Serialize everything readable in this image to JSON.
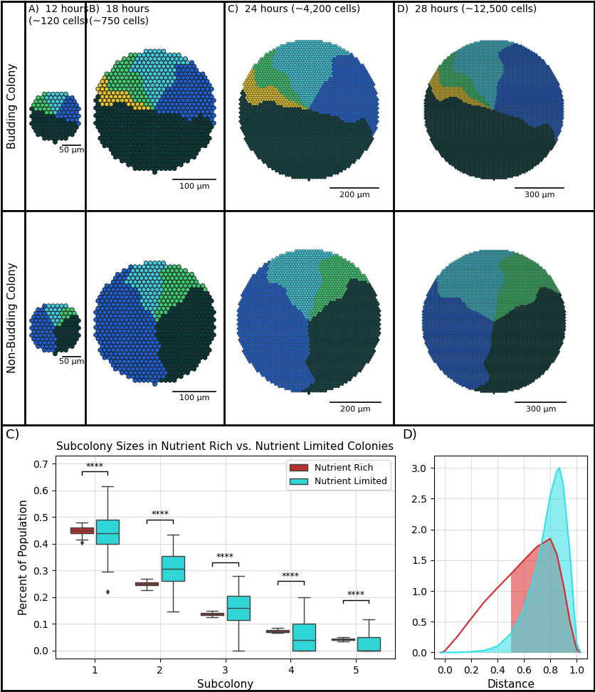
{
  "figure": {
    "rows": [
      "Budding Colony",
      "Non-Budding Colony"
    ],
    "columns": [
      {
        "title": [
          "A)  12 hours",
          "(~120 cells)"
        ],
        "scale_bar": "50 μm"
      },
      {
        "title": [
          "B)  18 hours",
          "(~750 cells)"
        ],
        "scale_bar": "100 μm"
      },
      {
        "title": [
          "C)  24 hours (~4,200 cells)"
        ],
        "scale_bar": "200 μm"
      },
      {
        "title": [
          "D)  28 hours (~12,500 cells)"
        ],
        "scale_bar": "300 μm"
      }
    ]
  },
  "chart_data": [
    {
      "type": "box",
      "panel": "C)",
      "title": "Subcolony Sizes in Nutrient Rich vs. Nutrient Limited Colonies",
      "x_label": "Subcolony",
      "y_label": "Percent of Population",
      "categories": [
        "1",
        "2",
        "3",
        "4",
        "5"
      ],
      "ylim": [
        -0.03,
        0.73
      ],
      "yticks": [
        {
          "value": 0.0,
          "label": "0.0"
        },
        {
          "value": 0.1,
          "label": "0.1"
        },
        {
          "value": 0.2,
          "label": "0.2"
        },
        {
          "value": 0.3,
          "label": "0.3"
        },
        {
          "value": 0.4,
          "label": "0.4"
        },
        {
          "value": 0.5,
          "label": "0.5"
        },
        {
          "value": 0.6,
          "label": "0.6"
        },
        {
          "value": 0.7,
          "label": "0.7"
        }
      ],
      "grid": true,
      "legend": "upper right",
      "series": [
        {
          "name": "Nutrient Rich",
          "color": "#b5332e",
          "stats": [
            {
              "whislo": 0.415,
              "q1": 0.44,
              "med": 0.45,
              "q3": 0.46,
              "whishi": 0.48,
              "fliers": [
                0.405
              ]
            },
            {
              "whislo": 0.225,
              "q1": 0.245,
              "med": 0.25,
              "q3": 0.256,
              "whishi": 0.27,
              "fliers": []
            },
            {
              "whislo": 0.125,
              "q1": 0.132,
              "med": 0.137,
              "q3": 0.141,
              "whishi": 0.15,
              "fliers": []
            },
            {
              "whislo": 0.065,
              "q1": 0.07,
              "med": 0.075,
              "q3": 0.078,
              "whishi": 0.085,
              "fliers": []
            },
            {
              "whislo": 0.035,
              "q1": 0.04,
              "med": 0.042,
              "q3": 0.045,
              "whishi": 0.05,
              "fliers": []
            }
          ]
        },
        {
          "name": "Nutrient Limited",
          "color": "#30d5d8",
          "stats": [
            {
              "whislo": 0.295,
              "q1": 0.4,
              "med": 0.44,
              "q3": 0.49,
              "whishi": 0.615,
              "fliers": [
                0.22
              ]
            },
            {
              "whislo": 0.145,
              "q1": 0.26,
              "med": 0.305,
              "q3": 0.355,
              "whishi": 0.435,
              "fliers": []
            },
            {
              "whislo": 0.0,
              "q1": 0.115,
              "med": 0.16,
              "q3": 0.205,
              "whishi": 0.28,
              "fliers": []
            },
            {
              "whislo": 0.0,
              "q1": 0.0,
              "med": 0.04,
              "q3": 0.1,
              "whishi": 0.2,
              "fliers": []
            },
            {
              "whislo": 0.0,
              "q1": 0.0,
              "med": 0.0,
              "q3": 0.05,
              "whishi": 0.118,
              "fliers": []
            }
          ]
        }
      ],
      "annotations": [
        {
          "text": "****",
          "y": 0.67
        },
        {
          "text": "****",
          "y": 0.49
        },
        {
          "text": "****",
          "y": 0.33
        },
        {
          "text": "****",
          "y": 0.26
        },
        {
          "text": "****",
          "y": 0.19
        }
      ]
    },
    {
      "type": "line",
      "panel": "D)",
      "x_label": "Distance",
      "xlim": [
        -0.08,
        1.08
      ],
      "xticks": [
        {
          "value": 0.0,
          "label": "0.0"
        },
        {
          "value": 0.2,
          "label": "0.2"
        },
        {
          "value": 0.4,
          "label": "0.4"
        },
        {
          "value": 0.6,
          "label": "0.6"
        },
        {
          "value": 0.8,
          "label": "0.8"
        },
        {
          "value": 1.0,
          "label": "1.0"
        }
      ],
      "ylim": [
        -0.1,
        3.2
      ],
      "yticks": [
        {
          "value": 0.0,
          "label": "0.0"
        },
        {
          "value": 0.5,
          "label": "0.5"
        },
        {
          "value": 1.0,
          "label": "1.0"
        },
        {
          "value": 1.5,
          "label": "1.5"
        },
        {
          "value": 2.0,
          "label": "2.0"
        },
        {
          "value": 2.5,
          "label": "2.5"
        },
        {
          "value": 3.0,
          "label": "3.0"
        }
      ],
      "grid": true,
      "series": [
        {
          "color": "#d62728",
          "shade_from": 0.5,
          "x": [
            -0.03,
            0.0,
            0.1,
            0.2,
            0.3,
            0.4,
            0.5,
            0.6,
            0.7,
            0.8,
            0.85,
            0.9,
            0.95,
            1.0,
            1.03
          ],
          "values": [
            0.0,
            0.02,
            0.27,
            0.55,
            0.82,
            1.05,
            1.27,
            1.5,
            1.72,
            1.85,
            1.6,
            1.1,
            0.5,
            0.05,
            0.0
          ]
        },
        {
          "color": "#30e0e8",
          "shade_from": -0.03,
          "x": [
            -0.03,
            0.1,
            0.2,
            0.3,
            0.4,
            0.5,
            0.6,
            0.7,
            0.75,
            0.8,
            0.85,
            0.87,
            0.9,
            0.95,
            1.0,
            1.03
          ],
          "values": [
            0.0,
            0.0,
            0.01,
            0.03,
            0.1,
            0.3,
            0.7,
            1.4,
            1.95,
            2.55,
            2.95,
            3.0,
            2.7,
            1.6,
            0.15,
            0.0
          ]
        }
      ]
    }
  ]
}
